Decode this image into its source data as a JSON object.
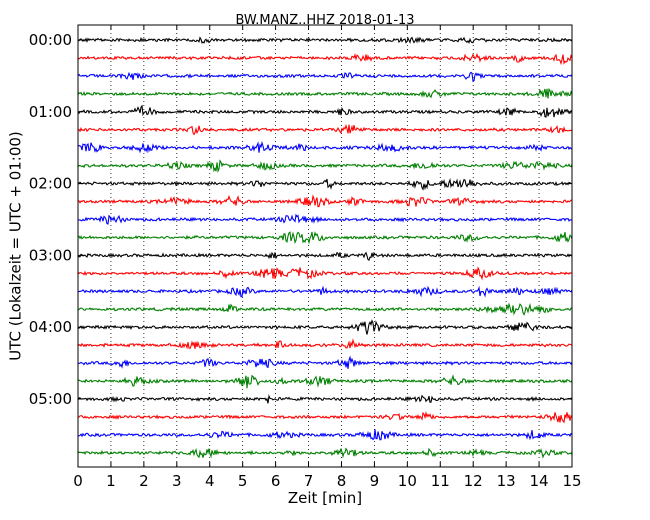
{
  "chart_data": {
    "type": "line",
    "title": "BW.MANZ..HHZ 2018-01-13",
    "xlabel": "Zeit  [min]",
    "ylabel": "UTC (Lokalzeit = UTC + 01:00)",
    "xlim": [
      0,
      15
    ],
    "x_ticks": [
      "0",
      "1",
      "2",
      "3",
      "4",
      "5",
      "6",
      "7",
      "8",
      "9",
      "10",
      "11",
      "12",
      "13",
      "14",
      "15"
    ],
    "y_tick_labels": [
      "00:00",
      "01:00",
      "02:00",
      "03:00",
      "04:00",
      "05:00"
    ],
    "y_tick_rows": [
      0,
      4,
      8,
      12,
      16,
      20
    ],
    "trace_count": 24,
    "minutes_per_trace": 15,
    "trace_colors": [
      "#000000",
      "#ff0000",
      "#0000ff",
      "#008000"
    ],
    "vertical_grid": "dotted",
    "traces_description": "24 rows of continuous seismic noise, one per 15-minute window, colors cycling black, red, blue, green"
  }
}
